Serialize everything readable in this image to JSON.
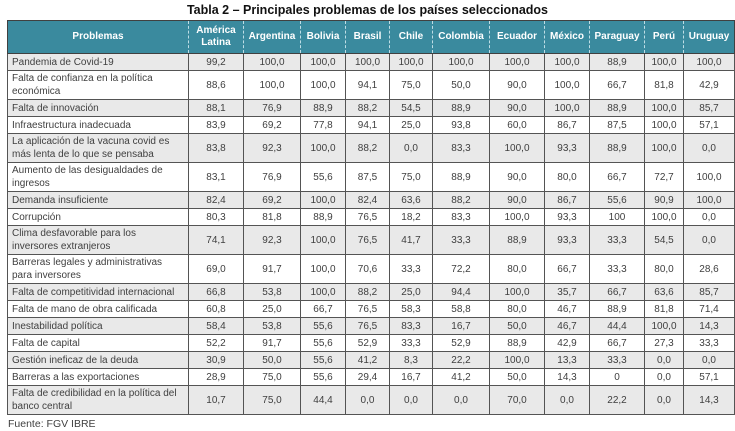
{
  "title": "Tabla 2 – Principales problemas de los países seleccionados",
  "source": "Fuente: FGV IBRE",
  "colors": {
    "header_bg": "#3a8a9e",
    "header_text": "#ffffff",
    "stripe_bg": "#e9e9e9",
    "border": "#545454",
    "body_text": "#3f3f3f"
  },
  "table": {
    "problem_header": "Problemas",
    "country_headers": [
      "América Latina",
      "Argentina",
      "Bolivia",
      "Brasil",
      "Chile",
      "Colombia",
      "Ecuador",
      "México",
      "Paraguay",
      "Perú",
      "Uruguay"
    ],
    "rows": [
      {
        "problema": "Pandemia de Covid-19",
        "values": [
          "99,2",
          "100,0",
          "100,0",
          "100,0",
          "100,0",
          "100,0",
          "100,0",
          "100,0",
          "88,9",
          "100,0",
          "100,0"
        ]
      },
      {
        "problema": "Falta de confianza en la política económica",
        "values": [
          "88,6",
          "100,0",
          "100,0",
          "94,1",
          "75,0",
          "50,0",
          "90,0",
          "100,0",
          "66,7",
          "81,8",
          "42,9"
        ]
      },
      {
        "problema": "Falta de innovación",
        "values": [
          "88,1",
          "76,9",
          "88,9",
          "88,2",
          "54,5",
          "88,9",
          "90,0",
          "100,0",
          "88,9",
          "100,0",
          "85,7"
        ]
      },
      {
        "problema": "Infraestructura inadecuada",
        "values": [
          "83,9",
          "69,2",
          "77,8",
          "94,1",
          "25,0",
          "93,8",
          "60,0",
          "86,7",
          "87,5",
          "100,0",
          "57,1"
        ]
      },
      {
        "problema": "La aplicación de la vacuna covid es más lenta de lo que se pensaba",
        "values": [
          "83,8",
          "92,3",
          "100,0",
          "88,2",
          "0,0",
          "83,3",
          "100,0",
          "93,3",
          "88,9",
          "100,0",
          "0,0"
        ]
      },
      {
        "problema": "Aumento de las desigualdades de ingresos",
        "values": [
          "83,1",
          "76,9",
          "55,6",
          "87,5",
          "75,0",
          "88,9",
          "90,0",
          "80,0",
          "66,7",
          "72,7",
          "100,0"
        ]
      },
      {
        "problema": "Demanda insuficiente",
        "values": [
          "82,4",
          "69,2",
          "100,0",
          "82,4",
          "63,6",
          "88,2",
          "90,0",
          "86,7",
          "55,6",
          "90,9",
          "100,0"
        ]
      },
      {
        "problema": "Corrupción",
        "values": [
          "80,3",
          "81,8",
          "88,9",
          "76,5",
          "18,2",
          "83,3",
          "100,0",
          "93,3",
          "100",
          "100,0",
          "0,0"
        ]
      },
      {
        "problema": "Clima desfavorable para los inversores extranjeros",
        "values": [
          "74,1",
          "92,3",
          "100,0",
          "76,5",
          "41,7",
          "33,3",
          "88,9",
          "93,3",
          "33,3",
          "54,5",
          "0,0"
        ]
      },
      {
        "problema": "Barreras legales y administrativas para inversores",
        "values": [
          "69,0",
          "91,7",
          "100,0",
          "70,6",
          "33,3",
          "72,2",
          "80,0",
          "66,7",
          "33,3",
          "80,0",
          "28,6"
        ]
      },
      {
        "problema": "Falta de competitividad internacional",
        "values": [
          "66,8",
          "53,8",
          "100,0",
          "88,2",
          "25,0",
          "94,4",
          "100,0",
          "35,7",
          "66,7",
          "63,6",
          "85,7"
        ]
      },
      {
        "problema": "Falta de mano de obra calificada",
        "values": [
          "60,8",
          "25,0",
          "66,7",
          "76,5",
          "58,3",
          "58,8",
          "80,0",
          "46,7",
          "88,9",
          "81,8",
          "71,4"
        ]
      },
      {
        "problema": "Inestabilidad política",
        "values": [
          "58,4",
          "53,8",
          "55,6",
          "76,5",
          "83,3",
          "16,7",
          "50,0",
          "46,7",
          "44,4",
          "100,0",
          "14,3"
        ]
      },
      {
        "problema": "Falta de capital",
        "values": [
          "52,2",
          "91,7",
          "55,6",
          "52,9",
          "33,3",
          "52,9",
          "88,9",
          "42,9",
          "66,7",
          "27,3",
          "33,3"
        ]
      },
      {
        "problema": "Gestión ineficaz de la deuda",
        "values": [
          "30,9",
          "50,0",
          "55,6",
          "41,2",
          "8,3",
          "22,2",
          "100,0",
          "13,3",
          "33,3",
          "0,0",
          "0,0"
        ]
      },
      {
        "problema": "Barreras a las exportaciones",
        "values": [
          "28,9",
          "75,0",
          "55,6",
          "29,4",
          "16,7",
          "41,2",
          "50,0",
          "14,3",
          "0",
          "0,0",
          "57,1"
        ]
      },
      {
        "problema": "Falta de credibilidad en la política del banco central",
        "values": [
          "10,7",
          "75,0",
          "44,4",
          "0,0",
          "0,0",
          "0,0",
          "70,0",
          "0,0",
          "22,2",
          "0,0",
          "14,3"
        ]
      }
    ]
  }
}
